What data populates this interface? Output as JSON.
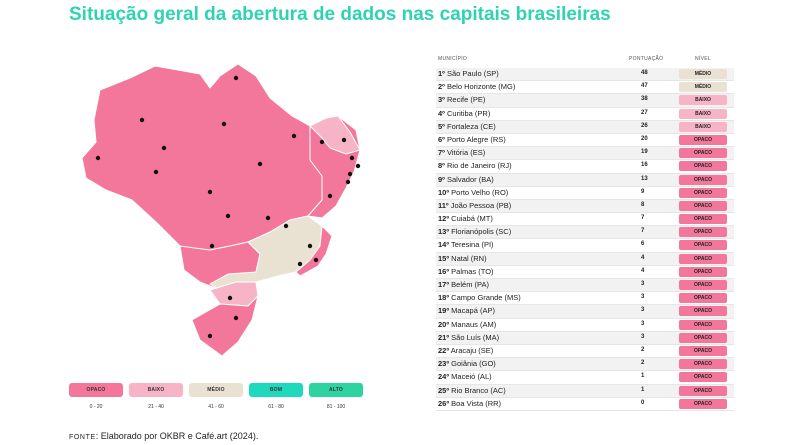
{
  "title": "Situação geral da abertura de dados nas capitais brasileiras",
  "colors": {
    "title": "#2fd3b1",
    "opaco": "#f3779b",
    "baixo": "#f8b4c7",
    "medio": "#e9e2d3",
    "bom": "#1fd9bd",
    "alto": "#2ed3a1"
  },
  "table": {
    "headers": {
      "city": "MUNICÍPIO",
      "score": "PONTUAÇÃO",
      "level": "NÍVEL"
    },
    "rows": [
      {
        "rank": "1º",
        "city": "São Paulo (SP)",
        "score": "48",
        "level": "MÉDIO",
        "key": "medio"
      },
      {
        "rank": "2º",
        "city": "Belo Horizonte (MG)",
        "score": "47",
        "level": "MÉDIO",
        "key": "medio"
      },
      {
        "rank": "3º",
        "city": "Recife (PE)",
        "score": "38",
        "level": "BAIXO",
        "key": "baixo"
      },
      {
        "rank": "4º",
        "city": "Curitiba (PR)",
        "score": "27",
        "level": "BAIXO",
        "key": "baixo"
      },
      {
        "rank": "5º",
        "city": "Fortaleza (CE)",
        "score": "26",
        "level": "BAIXO",
        "key": "baixo"
      },
      {
        "rank": "6º",
        "city": "Porto Alegre (RS)",
        "score": "20",
        "level": "OPACO",
        "key": "opaco"
      },
      {
        "rank": "7º",
        "city": "Vitória (ES)",
        "score": "19",
        "level": "OPACO",
        "key": "opaco"
      },
      {
        "rank": "8º",
        "city": "Rio de Janeiro (RJ)",
        "score": "16",
        "level": "OPACO",
        "key": "opaco"
      },
      {
        "rank": "9º",
        "city": "Salvador (BA)",
        "score": "13",
        "level": "OPACO",
        "key": "opaco"
      },
      {
        "rank": "10º",
        "city": "Porto Velho (RO)",
        "score": "9",
        "level": "OPACO",
        "key": "opaco"
      },
      {
        "rank": "11º",
        "city": "João Pessoa (PB)",
        "score": "8",
        "level": "OPACO",
        "key": "opaco"
      },
      {
        "rank": "12º",
        "city": "Cuiabá (MT)",
        "score": "7",
        "level": "OPACO",
        "key": "opaco"
      },
      {
        "rank": "13º",
        "city": "Florianópolis (SC)",
        "score": "7",
        "level": "OPACO",
        "key": "opaco"
      },
      {
        "rank": "14º",
        "city": "Teresina (PI)",
        "score": "6",
        "level": "OPACO",
        "key": "opaco"
      },
      {
        "rank": "15º",
        "city": "Natal (RN)",
        "score": "4",
        "level": "OPACO",
        "key": "opaco"
      },
      {
        "rank": "16º",
        "city": "Palmas (TO)",
        "score": "4",
        "level": "OPACO",
        "key": "opaco"
      },
      {
        "rank": "17º",
        "city": "Belém (PA)",
        "score": "3",
        "level": "OPACO",
        "key": "opaco"
      },
      {
        "rank": "18º",
        "city": "Campo Grande (MS)",
        "score": "3",
        "level": "OPACO",
        "key": "opaco"
      },
      {
        "rank": "19º",
        "city": "Macapá (AP)",
        "score": "3",
        "level": "OPACO",
        "key": "opaco"
      },
      {
        "rank": "20º",
        "city": "Manaus (AM)",
        "score": "3",
        "level": "OPACO",
        "key": "opaco"
      },
      {
        "rank": "21º",
        "city": "São Luís (MA)",
        "score": "3",
        "level": "OPACO",
        "key": "opaco"
      },
      {
        "rank": "22º",
        "city": "Aracaju (SE)",
        "score": "2",
        "level": "OPACO",
        "key": "opaco"
      },
      {
        "rank": "23º",
        "city": "Goiânia (GO)",
        "score": "2",
        "level": "OPACO",
        "key": "opaco"
      },
      {
        "rank": "24º",
        "city": "Maceió (AL)",
        "score": "1",
        "level": "OPACO",
        "key": "opaco"
      },
      {
        "rank": "25º",
        "city": "Rio Branco (AC)",
        "score": "1",
        "level": "OPACO",
        "key": "opaco"
      },
      {
        "rank": "26º",
        "city": "Boa Vista (RR)",
        "score": "0",
        "level": "OPACO",
        "key": "opaco"
      }
    ]
  },
  "legend": [
    {
      "label": "OPACO",
      "range": "0 - 20",
      "key": "opaco"
    },
    {
      "label": "BAIXO",
      "range": "21 - 40",
      "key": "baixo"
    },
    {
      "label": "MÉDIO",
      "range": "41 - 60",
      "key": "medio"
    },
    {
      "label": "BOM",
      "range": "61 - 80",
      "key": "bom"
    },
    {
      "label": "ALTO",
      "range": "81 - 100",
      "key": "alto"
    }
  ],
  "source": {
    "label": "FONTE",
    "text": ": Elaborado por OKBR e Café.art (2024)."
  }
}
